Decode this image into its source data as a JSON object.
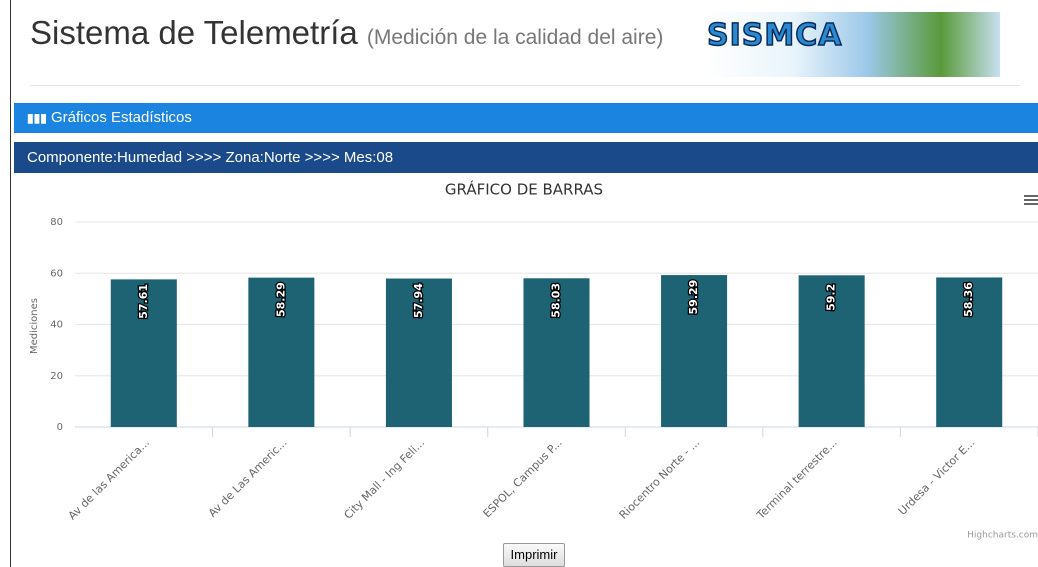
{
  "header": {
    "title": "Sistema de Telemetría",
    "subtitle": "(Medición de la calidad del aire)",
    "logo": "SISMCA"
  },
  "panel": {
    "heading": "Gráficos Estadísticos",
    "breadcrumb": "Componente:Humedad >>>> Zona:Norte >>>> Mes:08"
  },
  "chart_data": {
    "type": "bar",
    "title": "GRÁFICO DE BARRAS",
    "y_label": "Mediciones",
    "categories": [
      "Av de las America...",
      "Av de Las Americ...",
      "City Mall - Ing Feli...",
      "ESPOL, Campus P...",
      "Riocentro Norte - ...",
      "Terminal terrestre...",
      "Urdesa - Victor E..."
    ],
    "values": [
      57.61,
      58.29,
      57.94,
      58.03,
      59.29,
      59.2,
      58.36
    ],
    "color": "#1d6374",
    "ylim": [
      0,
      80
    ],
    "yticks": [
      0,
      20,
      40,
      60,
      80
    ],
    "grid": true
  },
  "credits": "Highcharts.com",
  "button": "Imprimir"
}
